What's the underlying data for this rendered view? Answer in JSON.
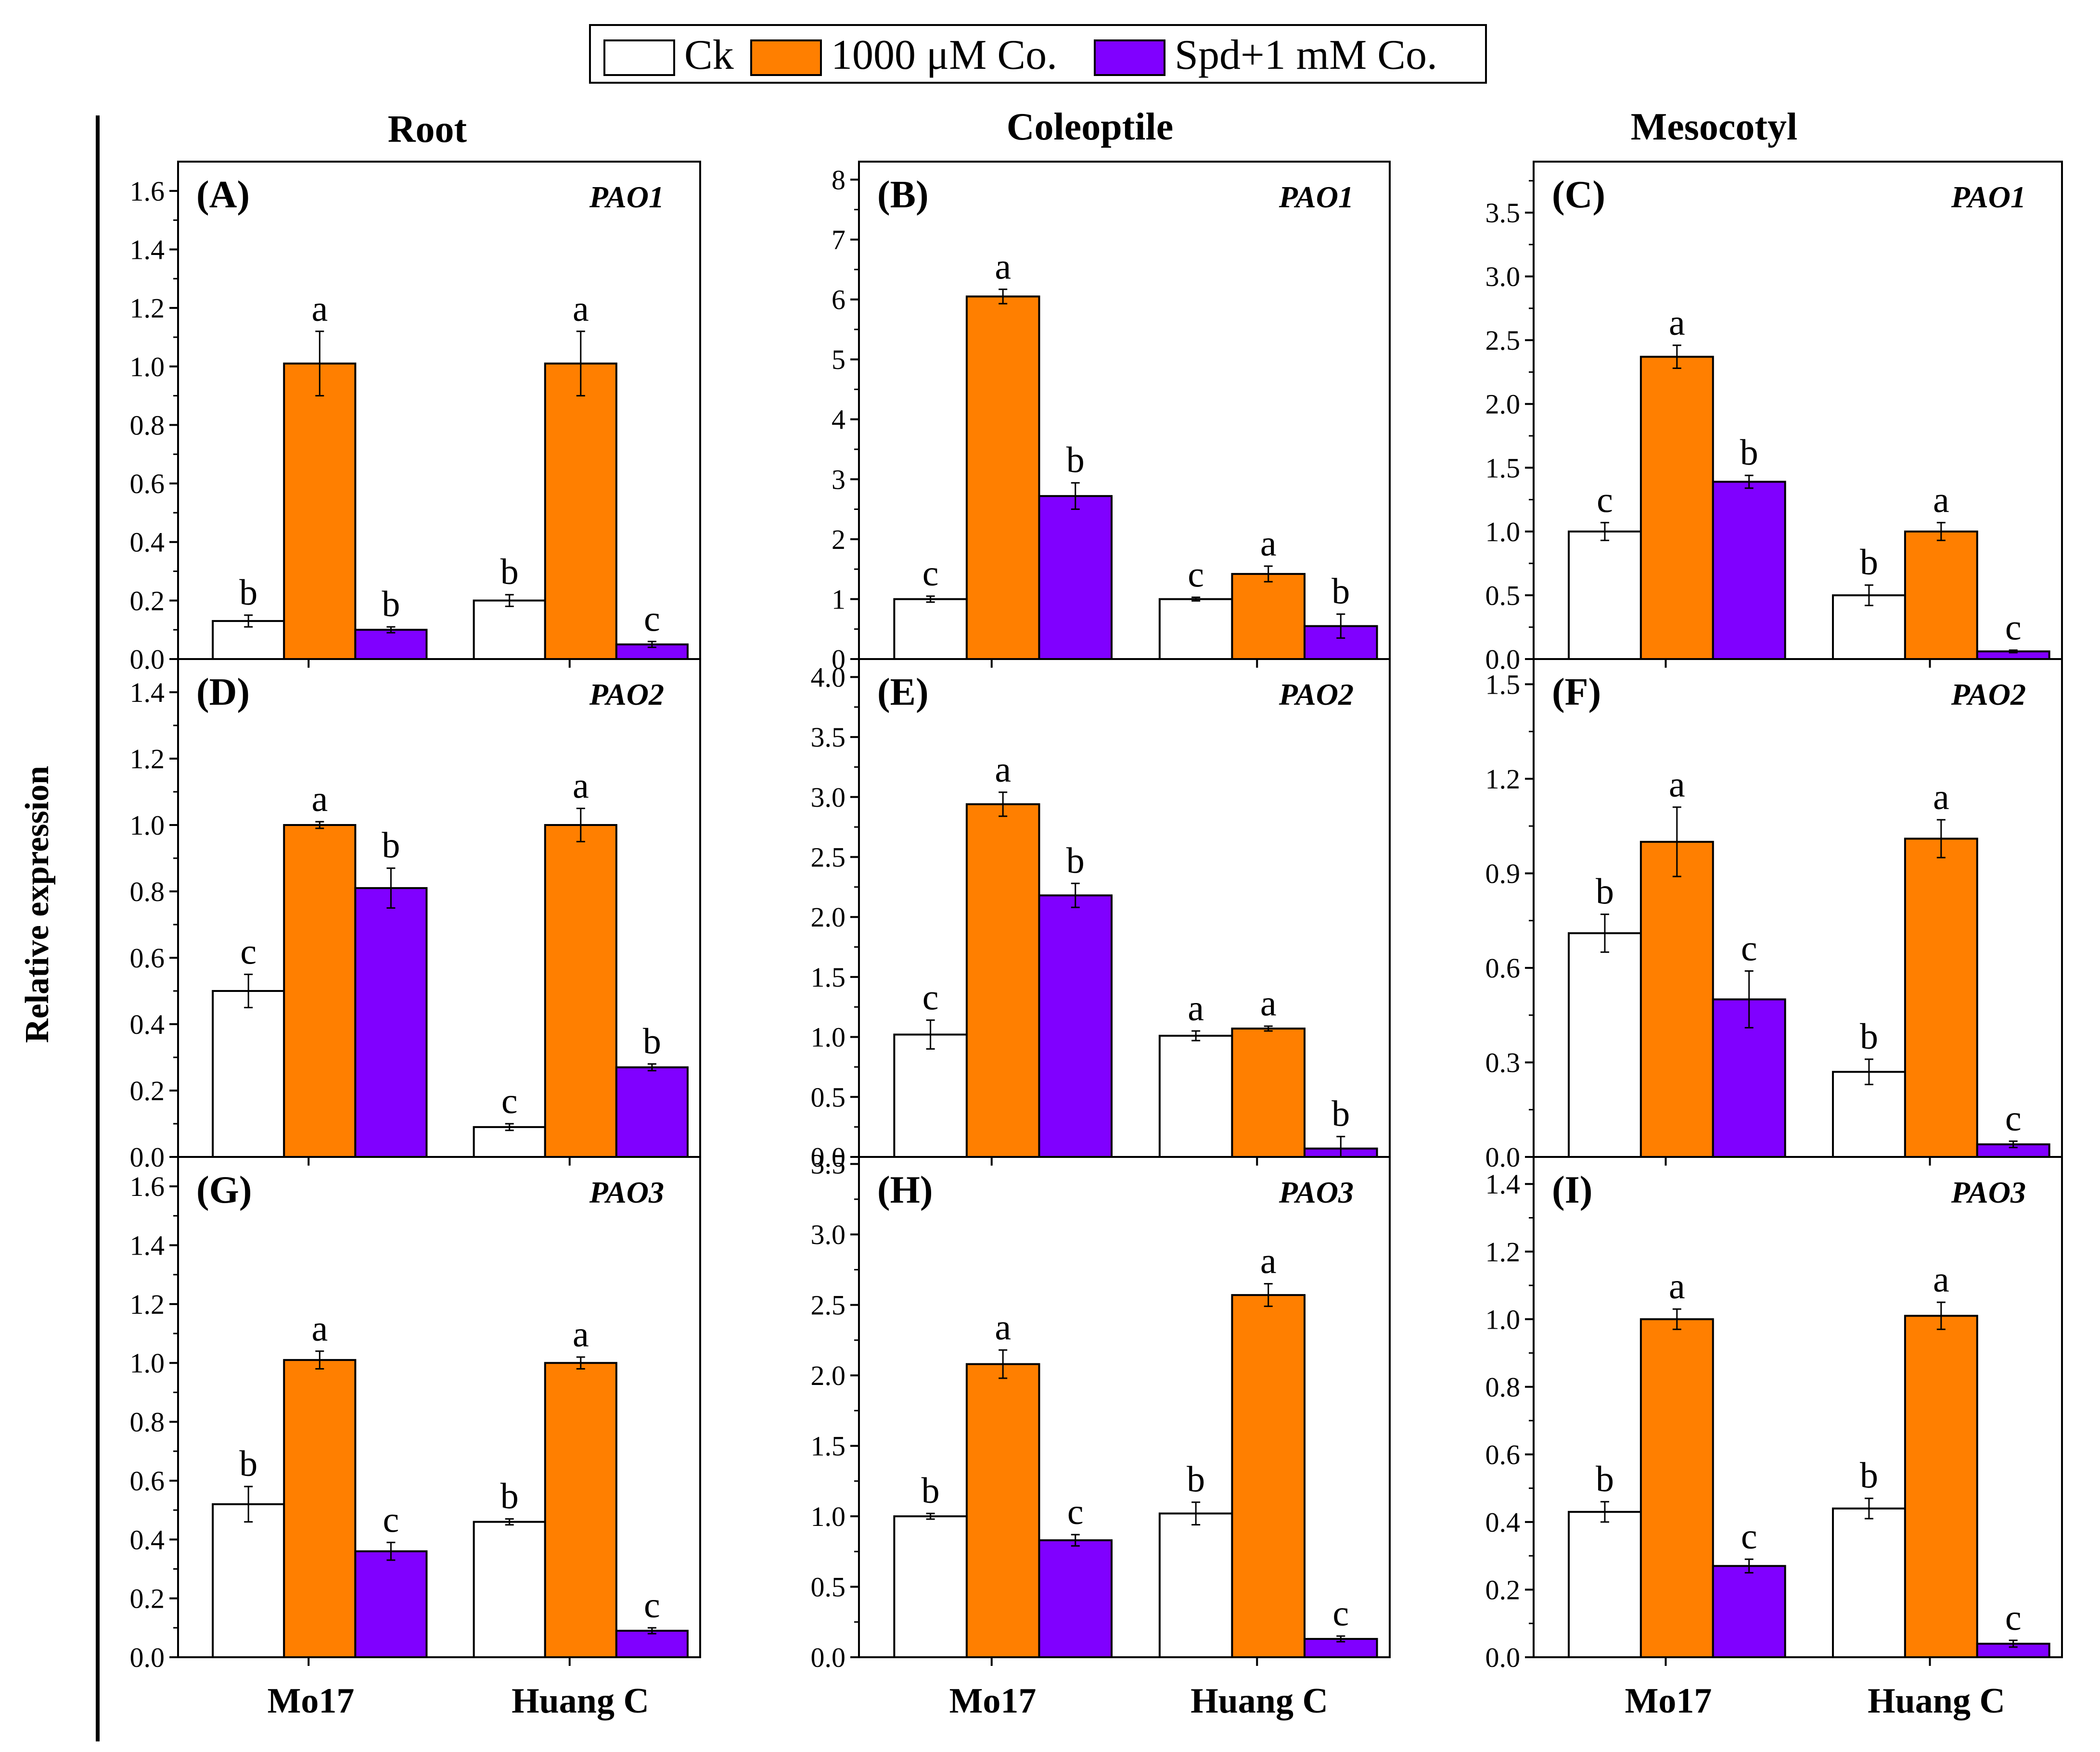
{
  "legend": {
    "items": [
      {
        "label": "Ck",
        "color": "#ffffff"
      },
      {
        "label": "1000 μM Co.",
        "color": "#ff7f00"
      },
      {
        "label": "Spd+1 mM Co.",
        "color": "#8000ff"
      }
    ]
  },
  "y_axis_title": "Relative expression",
  "column_titles": [
    "Root",
    "Coleoptile",
    "Mesocotyl"
  ],
  "x_group_labels": [
    "Mo17",
    "Huang C"
  ],
  "colors": {
    "ck": "#ffffff",
    "co": "#ff7f00",
    "spd": "#8000ff",
    "axis": "#000000"
  },
  "chart_data": [
    {
      "type": "bar",
      "panel": "(A)",
      "gene": "PAO1",
      "tissue": "Root",
      "categories": [
        "Mo17",
        "Huang C"
      ],
      "ylim": [
        0,
        1.7
      ],
      "ticks": [
        "0.0",
        "0.2",
        "0.4",
        "0.6",
        "0.8",
        "1.0",
        "1.2",
        "1.4",
        "1.6"
      ],
      "series": [
        {
          "name": "Ck",
          "values": [
            0.13,
            0.2
          ],
          "errors": [
            0.02,
            0.02
          ],
          "letters": [
            "b",
            "b"
          ]
        },
        {
          "name": "1000 μM Co.",
          "values": [
            1.01,
            1.01
          ],
          "errors": [
            0.11,
            0.11
          ],
          "letters": [
            "a",
            "a"
          ]
        },
        {
          "name": "Spd+1 mM Co.",
          "values": [
            0.1,
            0.05
          ],
          "errors": [
            0.01,
            0.01
          ],
          "letters": [
            "b",
            "c"
          ]
        }
      ]
    },
    {
      "type": "bar",
      "panel": "(B)",
      "gene": "PAO1",
      "tissue": "Coleoptile",
      "categories": [
        "Mo17",
        "Huang C"
      ],
      "ylim": [
        0,
        8.3
      ],
      "ticks": [
        "0",
        "1",
        "2",
        "3",
        "4",
        "5",
        "6",
        "7",
        "8"
      ],
      "series": [
        {
          "name": "Ck",
          "values": [
            1.0,
            1.0
          ],
          "errors": [
            0.05,
            0.03
          ],
          "letters": [
            "c",
            "c"
          ]
        },
        {
          "name": "1000 μM Co.",
          "values": [
            6.05,
            1.42
          ],
          "errors": [
            0.12,
            0.13
          ],
          "letters": [
            "a",
            "a"
          ]
        },
        {
          "name": "Spd+1 mM Co.",
          "values": [
            2.72,
            0.55
          ],
          "errors": [
            0.22,
            0.2
          ],
          "letters": [
            "b",
            "b"
          ]
        }
      ]
    },
    {
      "type": "bar",
      "panel": "(C)",
      "gene": "PAO1",
      "tissue": "Mesocotyl",
      "categories": [
        "Mo17",
        "Huang C"
      ],
      "ylim": [
        0,
        3.9
      ],
      "ticks": [
        "0.0",
        "0.5",
        "1.0",
        "1.5",
        "2.0",
        "2.5",
        "3.0",
        "3.5"
      ],
      "series": [
        {
          "name": "Ck",
          "values": [
            1.0,
            0.5
          ],
          "errors": [
            0.07,
            0.08
          ],
          "letters": [
            "c",
            "b"
          ]
        },
        {
          "name": "1000 μM Co.",
          "values": [
            2.37,
            1.0
          ],
          "errors": [
            0.09,
            0.07
          ],
          "letters": [
            "a",
            "a"
          ]
        },
        {
          "name": "Spd+1 mM Co.",
          "values": [
            1.39,
            0.06
          ],
          "errors": [
            0.05,
            0.01
          ],
          "letters": [
            "b",
            "c"
          ]
        }
      ]
    },
    {
      "type": "bar",
      "panel": "(D)",
      "gene": "PAO2",
      "tissue": "Root",
      "categories": [
        "Mo17",
        "Huang C"
      ],
      "ylim": [
        0,
        1.5
      ],
      "ticks": [
        "0.0",
        "0.2",
        "0.4",
        "0.6",
        "0.8",
        "1.0",
        "1.2",
        "1.4"
      ],
      "series": [
        {
          "name": "Ck",
          "values": [
            0.5,
            0.09
          ],
          "errors": [
            0.05,
            0.01
          ],
          "letters": [
            "c",
            "c"
          ]
        },
        {
          "name": "1000 μM Co.",
          "values": [
            1.0,
            1.0
          ],
          "errors": [
            0.01,
            0.05
          ],
          "letters": [
            "a",
            "a"
          ]
        },
        {
          "name": "Spd+1 mM Co.",
          "values": [
            0.81,
            0.27
          ],
          "errors": [
            0.06,
            0.01
          ],
          "letters": [
            "b",
            "b"
          ]
        }
      ]
    },
    {
      "type": "bar",
      "panel": "(E)",
      "gene": "PAO2",
      "tissue": "Coleoptile",
      "categories": [
        "Mo17",
        "Huang C"
      ],
      "ylim": [
        0,
        4.15
      ],
      "ticks": [
        "0.0",
        "0.5",
        "1.0",
        "1.5",
        "2.0",
        "2.5",
        "3.0",
        "3.5",
        "4.0"
      ],
      "series": [
        {
          "name": "Ck",
          "values": [
            1.02,
            1.01
          ],
          "errors": [
            0.12,
            0.04
          ],
          "letters": [
            "c",
            "a"
          ]
        },
        {
          "name": "1000 μM Co.",
          "values": [
            2.94,
            1.07
          ],
          "errors": [
            0.1,
            0.02
          ],
          "letters": [
            "a",
            "a"
          ]
        },
        {
          "name": "Spd+1 mM Co.",
          "values": [
            2.18,
            0.07
          ],
          "errors": [
            0.1,
            0.1
          ],
          "letters": [
            "b",
            "b"
          ]
        }
      ]
    },
    {
      "type": "bar",
      "panel": "(F)",
      "gene": "PAO2",
      "tissue": "Mesocotyl",
      "categories": [
        "Mo17",
        "Huang C"
      ],
      "ylim": [
        0,
        1.58
      ],
      "ticks": [
        "0.0",
        "0.3",
        "0.6",
        "0.9",
        "1.2",
        "1.5"
      ],
      "series": [
        {
          "name": "Ck",
          "values": [
            0.71,
            0.27
          ],
          "errors": [
            0.06,
            0.04
          ],
          "letters": [
            "b",
            "b"
          ]
        },
        {
          "name": "1000 μM Co.",
          "values": [
            1.0,
            1.01
          ],
          "errors": [
            0.11,
            0.06
          ],
          "letters": [
            "a",
            "a"
          ]
        },
        {
          "name": "Spd+1 mM Co.",
          "values": [
            0.5,
            0.04
          ],
          "errors": [
            0.09,
            0.01
          ],
          "letters": [
            "c",
            "c"
          ]
        }
      ]
    },
    {
      "type": "bar",
      "panel": "(G)",
      "gene": "PAO3",
      "tissue": "Root",
      "categories": [
        "Mo17",
        "Huang C"
      ],
      "ylim": [
        0,
        1.7
      ],
      "ticks": [
        "0.0",
        "0.2",
        "0.4",
        "0.6",
        "0.8",
        "1.0",
        "1.2",
        "1.4",
        "1.6"
      ],
      "series": [
        {
          "name": "Ck",
          "values": [
            0.52,
            0.46
          ],
          "errors": [
            0.06,
            0.01
          ],
          "letters": [
            "b",
            "b"
          ]
        },
        {
          "name": "1000 μM Co.",
          "values": [
            1.01,
            1.0
          ],
          "errors": [
            0.03,
            0.02
          ],
          "letters": [
            "a",
            "a"
          ]
        },
        {
          "name": "Spd+1 mM Co.",
          "values": [
            0.36,
            0.09
          ],
          "errors": [
            0.03,
            0.01
          ],
          "letters": [
            "c",
            "c"
          ]
        }
      ]
    },
    {
      "type": "bar",
      "panel": "(H)",
      "gene": "PAO3",
      "tissue": "Coleoptile",
      "categories": [
        "Mo17",
        "Huang C"
      ],
      "ylim": [
        0,
        3.55
      ],
      "ticks": [
        "0.0",
        "0.5",
        "1.0",
        "1.5",
        "2.0",
        "2.5",
        "3.0",
        "3.5"
      ],
      "series": [
        {
          "name": "Ck",
          "values": [
            1.0,
            1.02
          ],
          "errors": [
            0.02,
            0.08
          ],
          "letters": [
            "b",
            "b"
          ]
        },
        {
          "name": "1000 μM Co.",
          "values": [
            2.08,
            2.57
          ],
          "errors": [
            0.1,
            0.08
          ],
          "letters": [
            "a",
            "a"
          ]
        },
        {
          "name": "Spd+1 mM Co.",
          "values": [
            0.83,
            0.13
          ],
          "errors": [
            0.04,
            0.02
          ],
          "letters": [
            "c",
            "c"
          ]
        }
      ]
    },
    {
      "type": "bar",
      "panel": "(I)",
      "gene": "PAO3",
      "tissue": "Mesocotyl",
      "categories": [
        "Mo17",
        "Huang C"
      ],
      "ylim": [
        0,
        1.48
      ],
      "ticks": [
        "0.0",
        "0.2",
        "0.4",
        "0.6",
        "0.8",
        "1.0",
        "1.2",
        "1.4"
      ],
      "series": [
        {
          "name": "Ck",
          "values": [
            0.43,
            0.44
          ],
          "errors": [
            0.03,
            0.03
          ],
          "letters": [
            "b",
            "b"
          ]
        },
        {
          "name": "1000 μM Co.",
          "values": [
            1.0,
            1.01
          ],
          "errors": [
            0.03,
            0.04
          ],
          "letters": [
            "a",
            "a"
          ]
        },
        {
          "name": "Spd+1 mM Co.",
          "values": [
            0.27,
            0.04
          ],
          "errors": [
            0.02,
            0.01
          ],
          "letters": [
            "c",
            "c"
          ]
        }
      ]
    }
  ]
}
